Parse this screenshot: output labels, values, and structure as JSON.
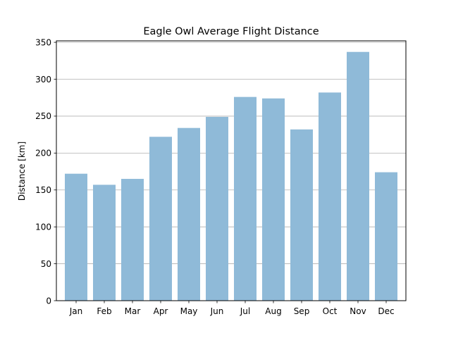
{
  "chart_data": {
    "type": "bar",
    "title": "Eagle Owl Average Flight Distance",
    "xlabel": "",
    "ylabel": "Distance [km]",
    "categories": [
      "Jan",
      "Feb",
      "Mar",
      "Apr",
      "May",
      "Jun",
      "Jul",
      "Aug",
      "Sep",
      "Oct",
      "Nov",
      "Dec"
    ],
    "values": [
      172,
      157,
      165,
      222,
      234,
      249,
      276,
      274,
      232,
      282,
      337,
      174
    ],
    "ylim": [
      0,
      352
    ],
    "yticks": [
      0,
      50,
      100,
      150,
      200,
      250,
      300,
      350
    ],
    "grid": "horizontal",
    "bar_color": "#8fbad8"
  }
}
